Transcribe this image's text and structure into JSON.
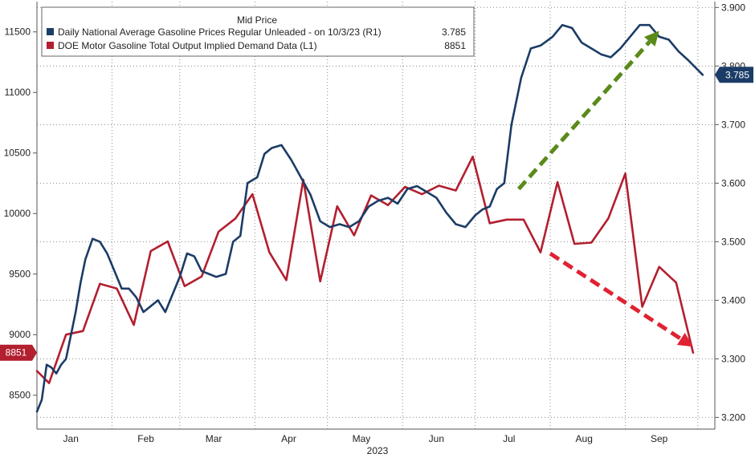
{
  "chart_data": {
    "type": "line",
    "title": "Mid Price",
    "xlabel": "2023",
    "x_ticks": [
      "Jan",
      "Feb",
      "Mar",
      "Apr",
      "May",
      "Jun",
      "Jul",
      "Aug",
      "Sep"
    ],
    "grid": true,
    "legend_position": "top-center",
    "left_axis": {
      "ticks": [
        "8500",
        "9000",
        "9500",
        "10000",
        "10500",
        "11000",
        "11500"
      ],
      "range": [
        8220,
        11750
      ]
    },
    "right_axis": {
      "ticks": [
        "3.200",
        "3.300",
        "3.400",
        "3.500",
        "3.600",
        "3.700",
        "3.800",
        "3.900"
      ],
      "range": [
        3.18,
        3.91
      ]
    },
    "series": [
      {
        "name": "Daily National Average Gasoline Prices Regular Unleaded -  on 10/3/23  (R1)",
        "last_value": "3.785",
        "axis": "right",
        "color": "#1b3c66",
        "points": [
          [
            "2023-01-01",
            3.21
          ],
          [
            "2023-01-03",
            3.23
          ],
          [
            "2023-01-05",
            3.29
          ],
          [
            "2023-01-07",
            3.285
          ],
          [
            "2023-01-09",
            3.275
          ],
          [
            "2023-01-11",
            3.29
          ],
          [
            "2023-01-13",
            3.3
          ],
          [
            "2023-01-15",
            3.34
          ],
          [
            "2023-01-17",
            3.38
          ],
          [
            "2023-01-19",
            3.43
          ],
          [
            "2023-01-21",
            3.47
          ],
          [
            "2023-01-24",
            3.505
          ],
          [
            "2023-01-27",
            3.5
          ],
          [
            "2023-01-30",
            3.48
          ],
          [
            "2023-02-02",
            3.45
          ],
          [
            "2023-02-05",
            3.42
          ],
          [
            "2023-02-08",
            3.42
          ],
          [
            "2023-02-11",
            3.405
          ],
          [
            "2023-02-14",
            3.38
          ],
          [
            "2023-02-17",
            3.39
          ],
          [
            "2023-02-20",
            3.4
          ],
          [
            "2023-02-23",
            3.38
          ],
          [
            "2023-02-26",
            3.41
          ],
          [
            "2023-03-01",
            3.44
          ],
          [
            "2023-03-04",
            3.48
          ],
          [
            "2023-03-07",
            3.475
          ],
          [
            "2023-03-10",
            3.45
          ],
          [
            "2023-03-13",
            3.445
          ],
          [
            "2023-03-16",
            3.44
          ],
          [
            "2023-03-20",
            3.445
          ],
          [
            "2023-03-23",
            3.5
          ],
          [
            "2023-03-26",
            3.51
          ],
          [
            "2023-03-29",
            3.6
          ],
          [
            "2023-04-02",
            3.61
          ],
          [
            "2023-04-05",
            3.65
          ],
          [
            "2023-04-08",
            3.66
          ],
          [
            "2023-04-12",
            3.665
          ],
          [
            "2023-04-16",
            3.64
          ],
          [
            "2023-04-20",
            3.61
          ],
          [
            "2023-04-24",
            3.58
          ],
          [
            "2023-04-28",
            3.535
          ],
          [
            "2023-05-02",
            3.525
          ],
          [
            "2023-05-06",
            3.53
          ],
          [
            "2023-05-10",
            3.525
          ],
          [
            "2023-05-14",
            3.535
          ],
          [
            "2023-05-18",
            3.56
          ],
          [
            "2023-05-22",
            3.57
          ],
          [
            "2023-05-26",
            3.575
          ],
          [
            "2023-05-30",
            3.565
          ],
          [
            "2023-06-03",
            3.59
          ],
          [
            "2023-06-07",
            3.595
          ],
          [
            "2023-06-11",
            3.585
          ],
          [
            "2023-06-15",
            3.575
          ],
          [
            "2023-06-19",
            3.55
          ],
          [
            "2023-06-23",
            3.53
          ],
          [
            "2023-06-27",
            3.525
          ],
          [
            "2023-07-01",
            3.545
          ],
          [
            "2023-07-04",
            3.555
          ],
          [
            "2023-07-07",
            3.56
          ],
          [
            "2023-07-10",
            3.59
          ],
          [
            "2023-07-13",
            3.6
          ],
          [
            "2023-07-16",
            3.7
          ],
          [
            "2023-07-20",
            3.78
          ],
          [
            "2023-07-24",
            3.83
          ],
          [
            "2023-07-28",
            3.835
          ],
          [
            "2023-08-02",
            3.85
          ],
          [
            "2023-08-06",
            3.87
          ],
          [
            "2023-08-10",
            3.865
          ],
          [
            "2023-08-14",
            3.84
          ],
          [
            "2023-08-18",
            3.83
          ],
          [
            "2023-08-22",
            3.82
          ],
          [
            "2023-08-26",
            3.815
          ],
          [
            "2023-08-30",
            3.83
          ],
          [
            "2023-09-03",
            3.85
          ],
          [
            "2023-09-07",
            3.87
          ],
          [
            "2023-09-11",
            3.87
          ],
          [
            "2023-09-15",
            3.85
          ],
          [
            "2023-09-19",
            3.845
          ],
          [
            "2023-09-23",
            3.825
          ],
          [
            "2023-09-27",
            3.81
          ],
          [
            "2023-10-03",
            3.785
          ]
        ]
      },
      {
        "name": "DOE Motor Gasoline Total Output Implied Demand Data  (L1)",
        "last_value": "8851",
        "axis": "left",
        "color": "#b21f2f",
        "points": [
          [
            "2023-01-01",
            8700
          ],
          [
            "2023-01-06",
            8600
          ],
          [
            "2023-01-13",
            9000
          ],
          [
            "2023-01-20",
            9030
          ],
          [
            "2023-01-27",
            9420
          ],
          [
            "2023-02-03",
            9380
          ],
          [
            "2023-02-10",
            9080
          ],
          [
            "2023-02-17",
            9690
          ],
          [
            "2023-02-24",
            9770
          ],
          [
            "2023-03-03",
            9400
          ],
          [
            "2023-03-10",
            9480
          ],
          [
            "2023-03-17",
            9850
          ],
          [
            "2023-03-24",
            9960
          ],
          [
            "2023-03-31",
            10160
          ],
          [
            "2023-04-07",
            9680
          ],
          [
            "2023-04-14",
            9450
          ],
          [
            "2023-04-21",
            10280
          ],
          [
            "2023-04-28",
            9440
          ],
          [
            "2023-05-05",
            10060
          ],
          [
            "2023-05-12",
            9820
          ],
          [
            "2023-05-19",
            10150
          ],
          [
            "2023-05-26",
            10070
          ],
          [
            "2023-06-02",
            10220
          ],
          [
            "2023-06-09",
            10160
          ],
          [
            "2023-06-16",
            10230
          ],
          [
            "2023-06-23",
            10190
          ],
          [
            "2023-06-30",
            10470
          ],
          [
            "2023-07-07",
            9920
          ],
          [
            "2023-07-14",
            9950
          ],
          [
            "2023-07-21",
            9950
          ],
          [
            "2023-07-28",
            9680
          ],
          [
            "2023-08-04",
            10260
          ],
          [
            "2023-08-11",
            9750
          ],
          [
            "2023-08-18",
            9760
          ],
          [
            "2023-08-25",
            9960
          ],
          [
            "2023-09-01",
            10330
          ],
          [
            "2023-09-08",
            9230
          ],
          [
            "2023-09-15",
            9560
          ],
          [
            "2023-09-22",
            9430
          ],
          [
            "2023-09-29",
            8851
          ]
        ]
      }
    ],
    "annotations": [
      {
        "type": "arrow",
        "color": "#5a8a1a",
        "style": "dashed",
        "from": [
          "2023-07-19",
          3.59
        ],
        "to": [
          "2023-09-15",
          3.86
        ]
      },
      {
        "type": "arrow",
        "color": "#e02232",
        "style": "dashed",
        "from": [
          "2023-08-01",
          9670
        ],
        "to": [
          "2023-09-29",
          8900
        ]
      }
    ]
  }
}
